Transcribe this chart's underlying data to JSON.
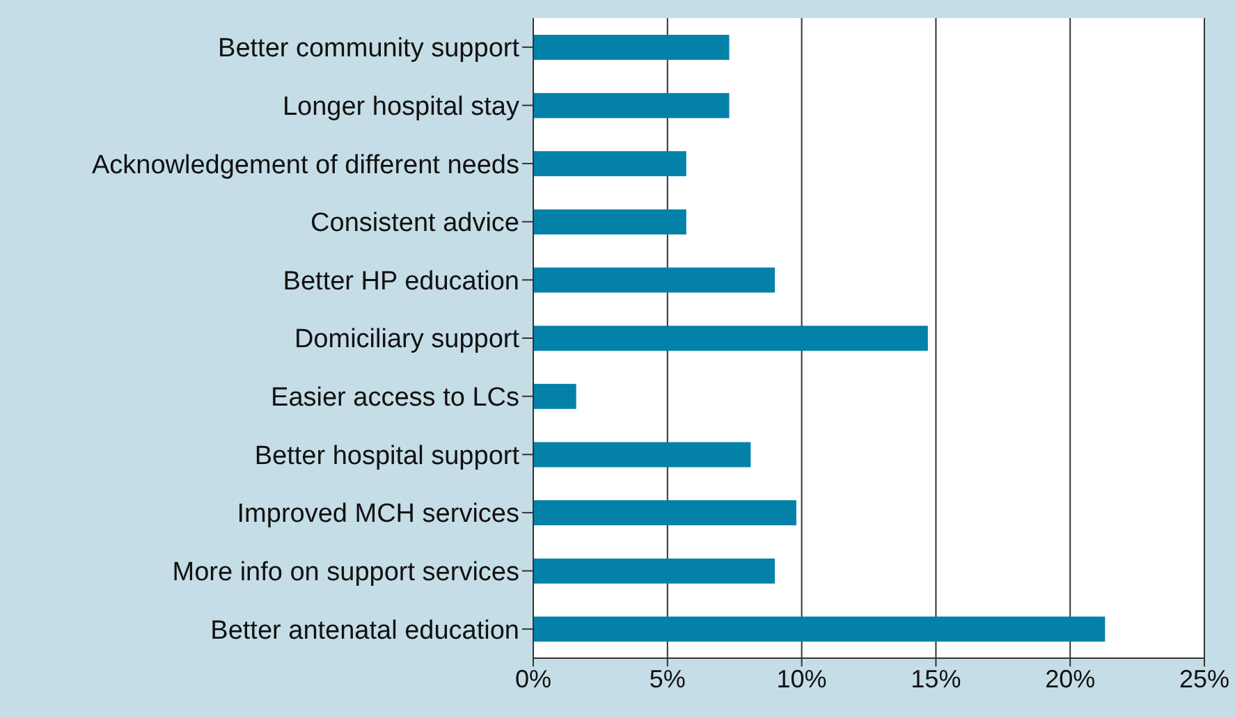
{
  "chart_data": {
    "type": "bar",
    "orientation": "horizontal",
    "categories": [
      "Better community support",
      "Longer hospital stay",
      "Acknowledgement of different needs",
      "Consistent advice",
      "Better HP education",
      "Domiciliary support",
      "Easier access to LCs",
      "Better hospital support",
      "Improved MCH services",
      "More info on support services",
      "Better antenatal education"
    ],
    "values": [
      7.3,
      7.3,
      5.7,
      5.7,
      9.0,
      14.7,
      1.6,
      8.1,
      9.8,
      9.0,
      21.3
    ],
    "color": "#0381a8",
    "xlim": [
      0,
      25
    ],
    "xticks": [
      {
        "value": 0,
        "label": "0%"
      },
      {
        "value": 5,
        "label": "5%"
      },
      {
        "value": 10,
        "label": "10%"
      },
      {
        "value": 15,
        "label": "15%"
      },
      {
        "value": 20,
        "label": "20%"
      },
      {
        "value": 25,
        "label": "25%"
      }
    ],
    "grid": "x"
  }
}
